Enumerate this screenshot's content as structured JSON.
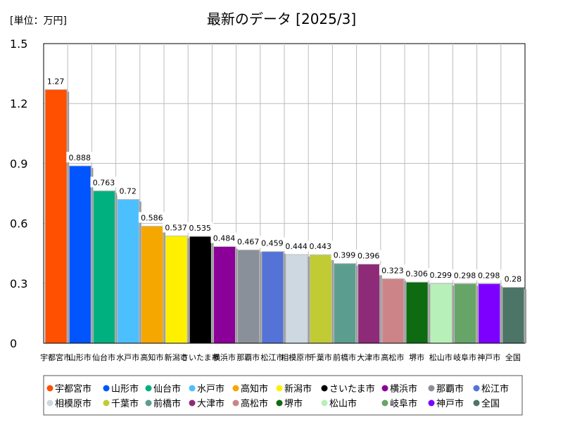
{
  "header": {
    "unit_label": "[単位：万円]"
  },
  "chart_data": {
    "type": "bar",
    "title": "最新のデータ [2025/3]",
    "xlabel": "",
    "ylabel": "",
    "ylim": [
      0,
      1.5
    ],
    "yticks": [
      "0",
      "0.3",
      "0.6",
      "0.9",
      "1.2",
      "1.5"
    ],
    "ytick_values": [
      0,
      0.3,
      0.6,
      0.9,
      1.2,
      1.5
    ],
    "grid": true,
    "legend_position": "bottom",
    "categories": [
      "宇都宮市",
      "山形市",
      "仙台市",
      "水戸市",
      "高知市",
      "新潟市",
      "さいたま市",
      "横浜市",
      "那覇市",
      "松江市",
      "相模原市",
      "千葉市",
      "前橋市",
      "大津市",
      "高松市",
      "堺市",
      "松山市",
      "岐阜市",
      "神戸市",
      "全国"
    ],
    "values": [
      1.27,
      0.888,
      0.763,
      0.72,
      0.586,
      0.537,
      0.535,
      0.484,
      0.467,
      0.459,
      0.444,
      0.443,
      0.399,
      0.396,
      0.323,
      0.306,
      0.299,
      0.298,
      0.298,
      0.28
    ],
    "value_labels": [
      "1.27",
      "0.888",
      "0.763",
      "0.72",
      "0.586",
      "0.537",
      "0.535",
      "0.484",
      "0.467",
      "0.459",
      "0.444",
      "0.443",
      "0.399",
      "0.396",
      "0.323",
      "0.306",
      "0.299",
      "0.298",
      "0.298",
      "0.28"
    ],
    "colors": [
      "#ff4f00",
      "#0055ff",
      "#00b07e",
      "#4cc0ff",
      "#f5a700",
      "#fff000",
      "#000000",
      "#8b0099",
      "#8a9099",
      "#5572d6",
      "#cdd8e0",
      "#c1cc35",
      "#5b9e8f",
      "#8e2b79",
      "#cc8488",
      "#0e6b12",
      "#b7f0b8",
      "#67a468",
      "#7d00ff",
      "#4c7568"
    ]
  }
}
